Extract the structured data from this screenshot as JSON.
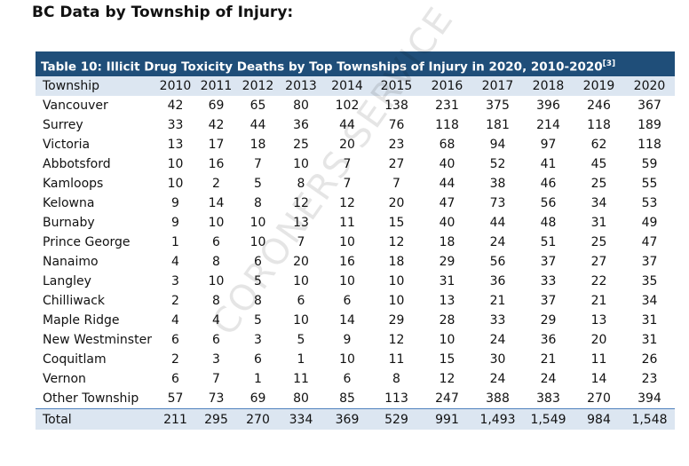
{
  "header": {
    "title": "BC Data by Township of Injury:"
  },
  "table": {
    "caption": "Table 10: Illicit Drug Toxicity Deaths by Top Townships of Injury in 2020, 2010-2020",
    "caption_ref": "[3]",
    "columns": [
      "Township",
      "2010",
      "2011",
      "2012",
      "2013",
      "2014",
      "2015",
      "2016",
      "2017",
      "2018",
      "2019",
      "2020"
    ],
    "rows": [
      [
        "Vancouver",
        "42",
        "69",
        "65",
        "80",
        "102",
        "138",
        "231",
        "375",
        "396",
        "246",
        "367"
      ],
      [
        "Surrey",
        "33",
        "42",
        "44",
        "36",
        "44",
        "76",
        "118",
        "181",
        "214",
        "118",
        "189"
      ],
      [
        "Victoria",
        "13",
        "17",
        "18",
        "25",
        "20",
        "23",
        "68",
        "94",
        "97",
        "62",
        "118"
      ],
      [
        "Abbotsford",
        "10",
        "16",
        "7",
        "10",
        "7",
        "27",
        "40",
        "52",
        "41",
        "45",
        "59"
      ],
      [
        "Kamloops",
        "10",
        "2",
        "5",
        "8",
        "7",
        "7",
        "44",
        "38",
        "46",
        "25",
        "55"
      ],
      [
        "Kelowna",
        "9",
        "14",
        "8",
        "12",
        "12",
        "20",
        "47",
        "73",
        "56",
        "34",
        "53"
      ],
      [
        "Burnaby",
        "9",
        "10",
        "10",
        "13",
        "11",
        "15",
        "40",
        "44",
        "48",
        "31",
        "49"
      ],
      [
        "Prince George",
        "1",
        "6",
        "10",
        "7",
        "10",
        "12",
        "18",
        "24",
        "51",
        "25",
        "47"
      ],
      [
        "Nanaimo",
        "4",
        "8",
        "6",
        "20",
        "16",
        "18",
        "29",
        "56",
        "37",
        "27",
        "37"
      ],
      [
        "Langley",
        "3",
        "10",
        "5",
        "10",
        "10",
        "10",
        "31",
        "36",
        "33",
        "22",
        "35"
      ],
      [
        "Chilliwack",
        "2",
        "8",
        "8",
        "6",
        "6",
        "10",
        "13",
        "21",
        "37",
        "21",
        "34"
      ],
      [
        "Maple Ridge",
        "4",
        "4",
        "5",
        "10",
        "14",
        "29",
        "28",
        "33",
        "29",
        "13",
        "31"
      ],
      [
        "New Westminster",
        "6",
        "6",
        "3",
        "5",
        "9",
        "12",
        "10",
        "24",
        "36",
        "20",
        "31"
      ],
      [
        "Coquitlam",
        "2",
        "3",
        "6",
        "1",
        "10",
        "11",
        "15",
        "30",
        "21",
        "11",
        "26"
      ],
      [
        "Vernon",
        "6",
        "7",
        "1",
        "11",
        "6",
        "8",
        "12",
        "24",
        "24",
        "14",
        "23"
      ],
      [
        "Other Township",
        "57",
        "73",
        "69",
        "80",
        "85",
        "113",
        "247",
        "388",
        "383",
        "270",
        "394"
      ]
    ],
    "total": [
      "Total",
      "211",
      "295",
      "270",
      "334",
      "369",
      "529",
      "991",
      "1,493",
      "1,549",
      "984",
      "1,548"
    ]
  },
  "watermark": "CORONERS SERVICE"
}
